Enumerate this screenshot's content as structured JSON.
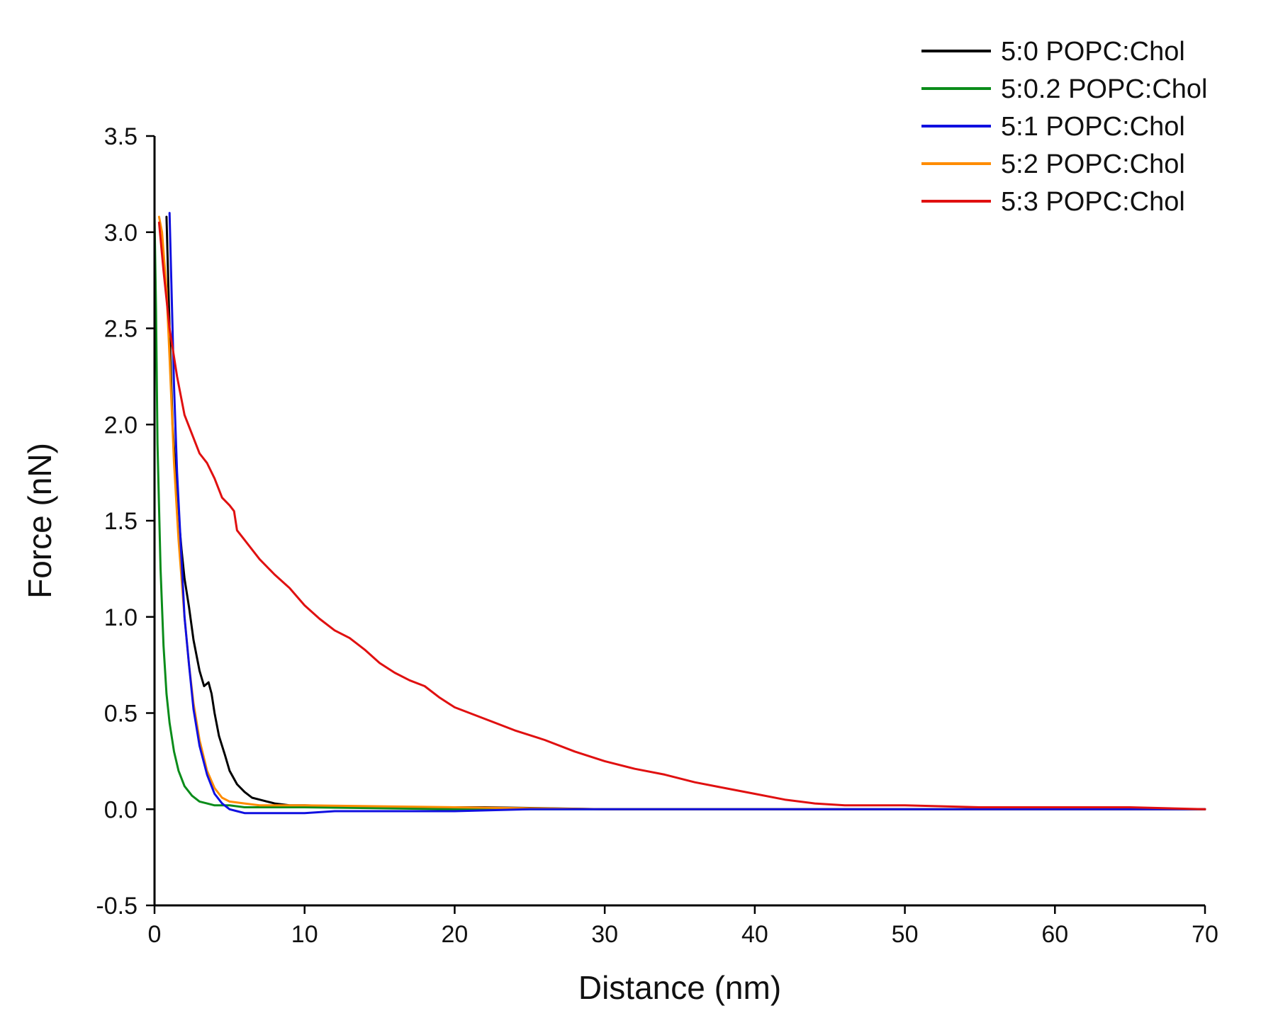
{
  "chart_data": {
    "type": "line",
    "title": "",
    "xlabel": "Distance (nm)",
    "ylabel": "Force (nN)",
    "xlim": [
      0,
      70
    ],
    "ylim": [
      -0.5,
      3.5
    ],
    "xticks": [
      0,
      10,
      20,
      30,
      40,
      50,
      60,
      70
    ],
    "xtick_labels": [
      "0",
      "10",
      "20",
      "30",
      "40",
      "50",
      "60",
      "70"
    ],
    "yticks": [
      -0.5,
      0,
      0.5,
      1,
      1.5,
      2,
      2.5,
      3,
      3.5
    ],
    "ytick_labels": [
      "-0.5",
      "0.0",
      "0.5",
      "1.0",
      "1.5",
      "2.0",
      "2.5",
      "3.0",
      "3.5"
    ],
    "grid": false,
    "legend_position": "top-right",
    "series": [
      {
        "name": "5:0 POPC:Chol",
        "color": "#000000",
        "x": [
          0.8,
          1.0,
          1.2,
          1.5,
          1.8,
          2.0,
          2.3,
          2.6,
          3.0,
          3.3,
          3.6,
          3.8,
          4.0,
          4.3,
          4.7,
          5.0,
          5.5,
          6.0,
          6.5,
          7.0,
          7.5,
          8.0,
          9.0,
          10,
          15,
          22,
          30,
          40,
          50,
          60,
          70
        ],
        "y": [
          3.08,
          2.5,
          2.0,
          1.62,
          1.35,
          1.2,
          1.05,
          0.88,
          0.72,
          0.64,
          0.66,
          0.6,
          0.5,
          0.38,
          0.28,
          0.2,
          0.13,
          0.09,
          0.06,
          0.05,
          0.04,
          0.03,
          0.02,
          0.02,
          0.01,
          0.01,
          0.0,
          0.0,
          0.0,
          0.0,
          0.0
        ]
      },
      {
        "name": "5:0.2 POPC:Chol",
        "color": "#0a8c1a",
        "x": [
          0.0,
          0.1,
          0.2,
          0.4,
          0.6,
          0.8,
          1.0,
          1.3,
          1.6,
          2.0,
          2.5,
          3.0,
          3.5,
          4.0,
          5.0,
          6.0,
          8.0,
          10,
          20,
          30,
          40,
          50,
          60,
          70
        ],
        "y": [
          3.08,
          2.6,
          1.9,
          1.25,
          0.85,
          0.6,
          0.45,
          0.3,
          0.2,
          0.12,
          0.07,
          0.04,
          0.03,
          0.02,
          0.02,
          0.01,
          0.01,
          0.01,
          0.0,
          0.0,
          0.0,
          0.0,
          0.0,
          0.0
        ]
      },
      {
        "name": "5:1 POPC:Chol",
        "color": "#1010e0",
        "x": [
          1.0,
          1.1,
          1.3,
          1.5,
          1.8,
          2.0,
          2.3,
          2.6,
          3.0,
          3.5,
          4.0,
          4.5,
          5.0,
          5.5,
          6.0,
          7.0,
          8.0,
          10,
          12,
          15,
          20,
          25,
          30,
          40,
          50,
          60,
          70
        ],
        "y": [
          3.1,
          2.8,
          2.2,
          1.75,
          1.3,
          1.0,
          0.75,
          0.52,
          0.33,
          0.18,
          0.08,
          0.03,
          0.0,
          -0.01,
          -0.02,
          -0.02,
          -0.02,
          -0.02,
          -0.01,
          -0.01,
          -0.01,
          0.0,
          0.0,
          0.0,
          0.0,
          0.0,
          0.0
        ]
      },
      {
        "name": "5:2 POPC:Chol",
        "color": "#ff8c00",
        "x": [
          0.3,
          0.5,
          0.8,
          1.0,
          1.3,
          1.6,
          2.0,
          2.3,
          2.6,
          3.0,
          3.5,
          4.0,
          4.5,
          5.0,
          6.0,
          7.0,
          8.0,
          10,
          20,
          30,
          40,
          50,
          60,
          70
        ],
        "y": [
          3.08,
          3.0,
          2.7,
          2.35,
          1.8,
          1.4,
          1.0,
          0.75,
          0.55,
          0.36,
          0.2,
          0.11,
          0.06,
          0.04,
          0.03,
          0.02,
          0.02,
          0.02,
          0.01,
          0.0,
          0.0,
          0.0,
          0.0,
          0.0
        ]
      },
      {
        "name": "5:3 POPC:Chol",
        "color": "#e01010",
        "x": [
          0.3,
          0.6,
          1.0,
          1.5,
          2.0,
          2.5,
          3.0,
          3.5,
          4.0,
          4.5,
          5.0,
          5.3,
          5.5,
          6.0,
          7.0,
          8.0,
          9.0,
          10,
          11,
          12,
          13,
          14,
          15,
          16,
          17,
          18,
          19,
          20,
          22,
          24,
          26,
          28,
          30,
          32,
          34,
          36,
          38,
          40,
          42,
          44,
          46,
          50,
          55,
          60,
          65,
          70
        ],
        "y": [
          3.05,
          2.8,
          2.5,
          2.25,
          2.05,
          1.95,
          1.85,
          1.8,
          1.72,
          1.62,
          1.58,
          1.55,
          1.45,
          1.4,
          1.3,
          1.22,
          1.15,
          1.06,
          0.99,
          0.93,
          0.89,
          0.83,
          0.76,
          0.71,
          0.67,
          0.64,
          0.58,
          0.53,
          0.47,
          0.41,
          0.36,
          0.3,
          0.25,
          0.21,
          0.18,
          0.14,
          0.11,
          0.08,
          0.05,
          0.03,
          0.02,
          0.02,
          0.01,
          0.01,
          0.01,
          0.0
        ]
      }
    ]
  }
}
